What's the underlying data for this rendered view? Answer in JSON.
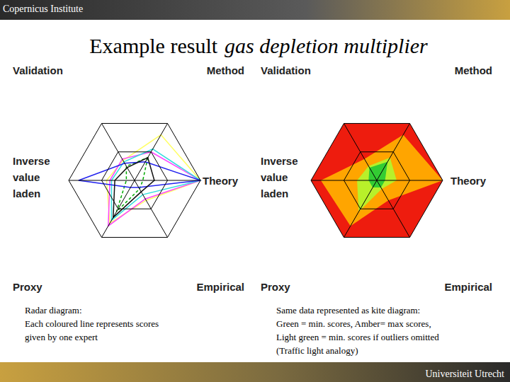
{
  "header": "Copernicus Institute",
  "footer": "Universiteit Utrecht",
  "slide_title": {
    "plain": "Example result",
    "italic": "gas depletion multiplier"
  },
  "chart_data": [
    {
      "type": "radar",
      "categories": [
        "Method",
        "Theory",
        "Empirical",
        "Proxy",
        "Inverse value laden",
        "Validation"
      ],
      "ylim": [
        0,
        4
      ],
      "yticks": [
        2,
        4
      ],
      "tick_labels": false,
      "series": [
        {
          "color": "#ffff66",
          "line_style": "solid",
          "values": [
            3.2,
            4,
            1.4,
            3.0,
            1.7,
            1.4
          ]
        },
        {
          "color": "#ff44ff",
          "line_style": "solid",
          "values": [
            2.0,
            4,
            1.3,
            3.2,
            1.5,
            1.5
          ]
        },
        {
          "color": "#33dddd",
          "line_style": "solid",
          "values": [
            2.2,
            4,
            1.0,
            2.8,
            1.4,
            1.3
          ]
        },
        {
          "color": "#00aa00",
          "line_style": "dashed",
          "values": [
            1.6,
            0.5,
            0.6,
            2.2,
            0.5,
            1.0
          ]
        },
        {
          "color": "#2222ee",
          "line_style": "solid",
          "values": [
            1.3,
            4,
            0.5,
            0.5,
            3.4,
            1.2
          ]
        },
        {
          "color": "#111111",
          "line_style": "solid",
          "values": [
            1.6,
            1.2,
            0.8,
            2.6,
            1.2,
            0.9
          ]
        }
      ],
      "annotations": [
        "Radar diagram:",
        "Each coloured line represents scores",
        "given by one expert"
      ]
    },
    {
      "type": "kite",
      "color": "#ee1c0e",
      "categories": [
        "Method",
        "Theory",
        "Empirical",
        "Proxy",
        "Inverse value laden",
        "Validation"
      ],
      "ylim": [
        0,
        4
      ],
      "yticks": [
        2,
        4
      ],
      "tick_labels": false,
      "series": [
        {
          "color": "#ffa500",
          "values": [
            3.2,
            4,
            1.4,
            3.2,
            3.4,
            1.5
          ]
        },
        {
          "color": "#b8f02a",
          "values": [
            1.6,
            1.2,
            0.6,
            2.2,
            1.2,
            1.0
          ]
        },
        {
          "color": "#33cc33",
          "values": [
            1.3,
            0.5,
            0.5,
            0.5,
            0.5,
            0.9
          ]
        }
      ],
      "annotations": [
        "Same data represented as kite diagram:",
        "Green = min. scores, Amber= max scores,",
        "Light green = min. scores if outliers omitted",
        "(Traffic light analogy)"
      ]
    }
  ]
}
